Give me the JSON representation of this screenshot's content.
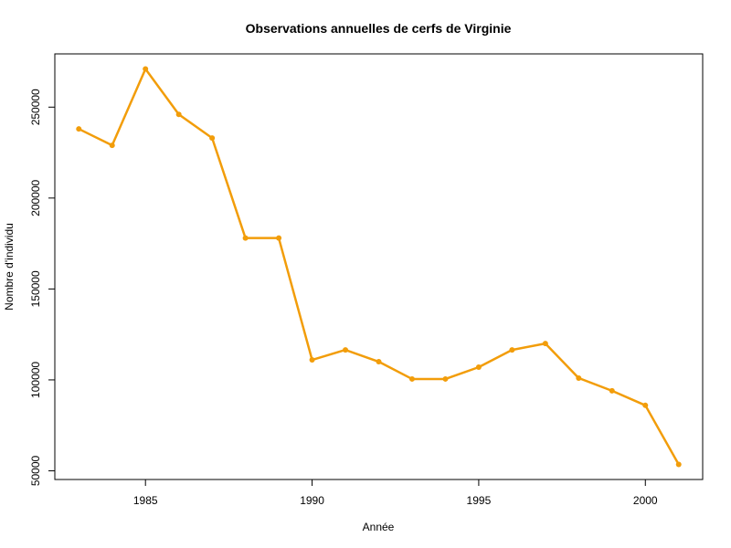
{
  "chart_data": {
    "type": "line",
    "title": "Observations annuelles de cerfs de Virginie",
    "xlabel": "Année",
    "ylabel": "Nombre d'individu",
    "x": [
      1983,
      1984,
      1985,
      1986,
      1987,
      1988,
      1989,
      1990,
      1991,
      1992,
      1993,
      1994,
      1995,
      1996,
      1997,
      1998,
      1999,
      2000,
      2001
    ],
    "series": [
      {
        "values": [
          238000,
          229000,
          271000,
          246000,
          233000,
          178000,
          178000,
          111000,
          116500,
          110000,
          100500,
          100500,
          107000,
          116500,
          120000,
          101000,
          94000,
          86000,
          53500
        ],
        "color": "#f29d0a"
      }
    ],
    "x_ticks": [
      1985,
      1990,
      1995,
      2000
    ],
    "x_tick_labels": [
      "1985",
      "1990",
      "1995",
      "2000"
    ],
    "y_ticks": [
      50000,
      100000,
      150000,
      200000,
      250000
    ],
    "y_tick_labels": [
      "50000",
      "100000",
      "150000",
      "200000",
      "250000"
    ],
    "xlim": [
      1982.28,
      2001.72
    ],
    "ylim": [
      45220,
      279280
    ],
    "grid": false,
    "legend": "none"
  }
}
